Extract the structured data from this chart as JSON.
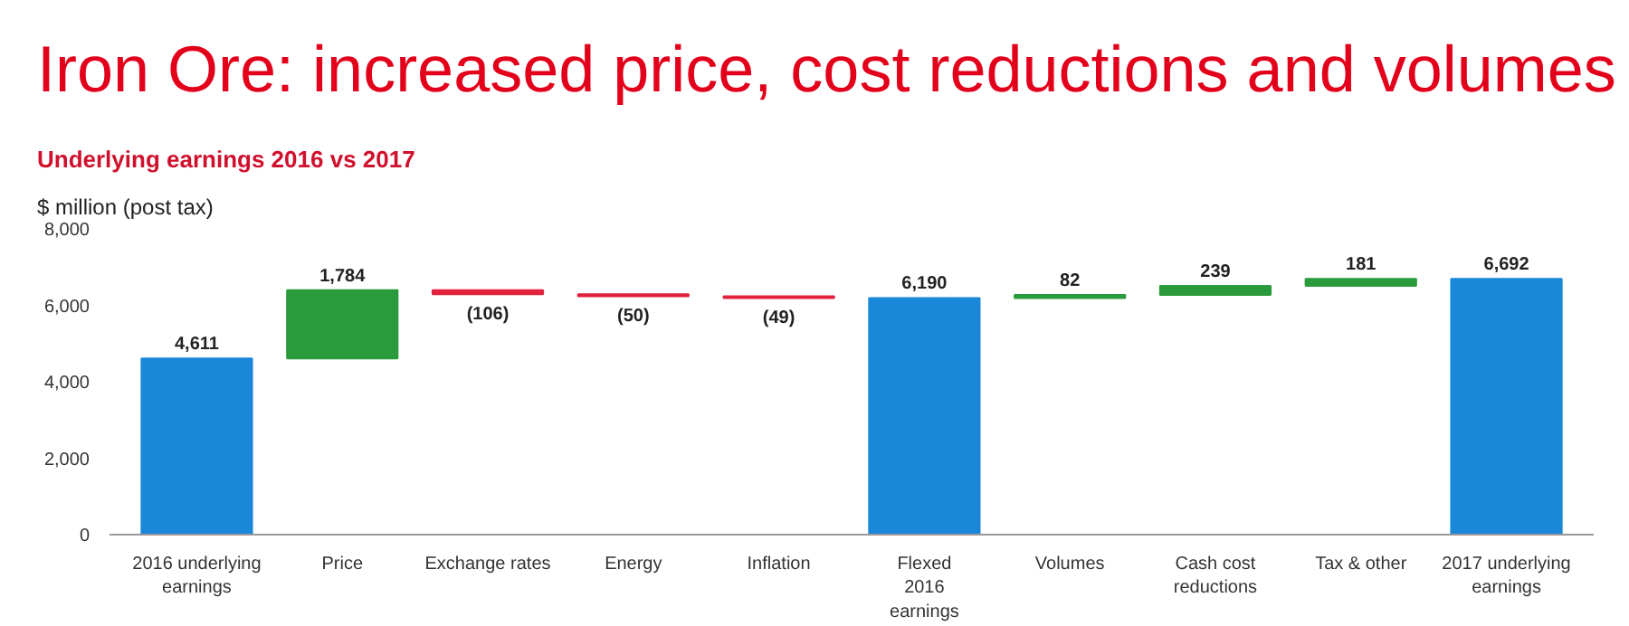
{
  "chart_data": {
    "type": "bar",
    "title": "Iron Ore: increased price, cost reductions and volumes",
    "subtitle": "Underlying earnings 2016 vs 2017",
    "ylabel": "$ million (post tax)",
    "categories": [
      "2016 underlying\nearnings",
      "Price",
      "Exchange rates",
      "Energy",
      "Inflation",
      "Flexed\n2016\nearnings",
      "Volumes",
      "Cash cost\nreductions",
      "Tax & other",
      "2017 underlying\nearnings"
    ],
    "values": [
      4611,
      1784,
      -106,
      -50,
      -49,
      6190,
      82,
      239,
      181,
      6692
    ],
    "base": [
      0,
      4611,
      6395,
      6289,
      6239,
      0,
      6190,
      6272,
      6511,
      0
    ],
    "colors": [
      "#1a87d8",
      "#2a9a3c",
      "#e2223c",
      "#e2223c",
      "#e2223c",
      "#1a87d8",
      "#2a9a3c",
      "#2a9a3c",
      "#2a9a3c",
      "#1a87d8"
    ],
    "value_labels": [
      "4,611",
      "1,784",
      "(106)",
      "(50)",
      "(49)",
      "6,190",
      "82",
      "239",
      "181",
      "6,692"
    ],
    "ylim": [
      0,
      8000
    ],
    "yticks": [
      {
        "value": 0,
        "label": "0"
      },
      {
        "value": 2000,
        "label": "2,000"
      },
      {
        "value": 4000,
        "label": "4,000"
      },
      {
        "value": 6000,
        "label": "6,000"
      },
      {
        "value": 8000,
        "label": "8,000"
      }
    ],
    "grid": false
  }
}
